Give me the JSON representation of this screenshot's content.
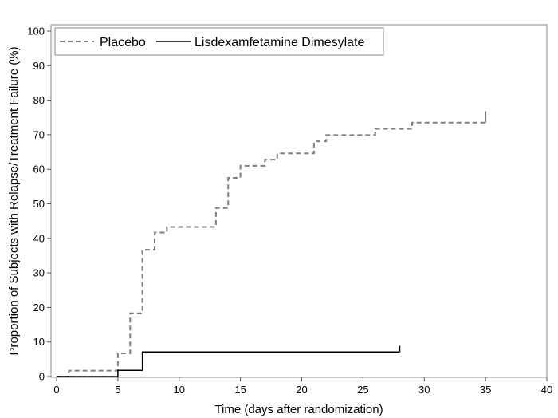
{
  "chart_data": {
    "type": "line",
    "subtype": "step (Kaplan-Meier)",
    "title": "",
    "xlabel": "Time (days after randomization)",
    "ylabel": "Proportion of Subjects with Relapse/Treatment Failure (%)",
    "xlim": [
      0,
      40
    ],
    "ylim": [
      0,
      100
    ],
    "xticks": [
      0,
      5,
      10,
      15,
      20,
      25,
      30,
      35,
      40
    ],
    "yticks": [
      0,
      10,
      20,
      30,
      40,
      50,
      60,
      70,
      80,
      90,
      100
    ],
    "grid": false,
    "legend_position": "top-left",
    "series": [
      {
        "name": "Placebo",
        "style": "dashed",
        "color": "#7f7f7f",
        "x": [
          0,
          1,
          5,
          6,
          7,
          8,
          9,
          13,
          14,
          15,
          17,
          18,
          21,
          22,
          26,
          29,
          35
        ],
        "y": [
          0,
          1.7,
          6.7,
          18.3,
          36.7,
          41.7,
          43.3,
          48.8,
          57.5,
          61.0,
          62.8,
          64.6,
          68.1,
          69.9,
          71.7,
          73.5,
          76.8
        ]
      },
      {
        "name": "Lisdexamfetamine Dimesylate",
        "style": "solid",
        "color": "#000000",
        "x": [
          0,
          5,
          7,
          28
        ],
        "y": [
          0,
          1.8,
          7.1,
          8.9
        ]
      }
    ]
  }
}
